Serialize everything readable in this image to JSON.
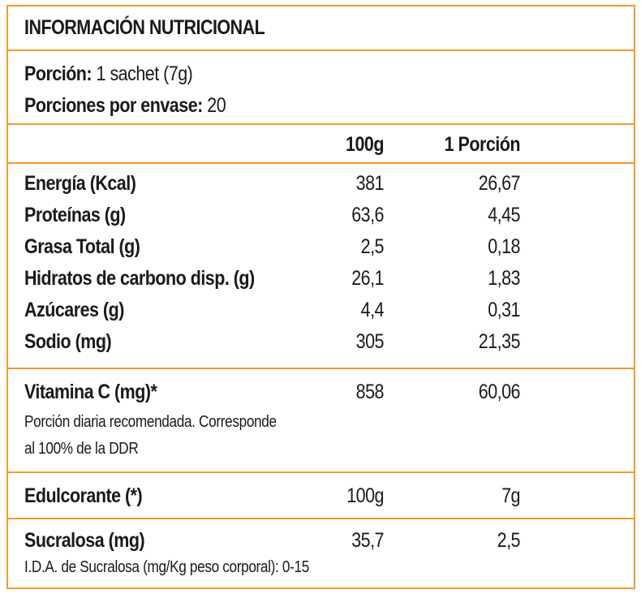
{
  "title": "INFORMACIÓN NUTRICIONAL",
  "serving": {
    "portion_label": "Porción:",
    "portion_value": "1 sachet (7g)",
    "count_label": "Porciones por envase:",
    "count_value": "20"
  },
  "columns": {
    "per100": "100g",
    "perServing": "1 Porción"
  },
  "nutrients": [
    {
      "name": "Energía (Kcal)",
      "per100": "381",
      "perServing": "26,67"
    },
    {
      "name": "Proteínas (g)",
      "per100": "63,6",
      "perServing": "4,45"
    },
    {
      "name": "Grasa Total (g)",
      "per100": "2,5",
      "perServing": "0,18"
    },
    {
      "name": "Hidratos de carbono disp. (g)",
      "per100": "26,1",
      "perServing": "1,83"
    },
    {
      "name": "Azúcares (g)",
      "per100": "4,4",
      "perServing": "0,31"
    },
    {
      "name": "Sodio (mg)",
      "per100": "305",
      "perServing": "21,35"
    }
  ],
  "vitamin": {
    "name": "Vitamina C (mg)*",
    "per100": "858",
    "perServing": "60,06",
    "note_line1": "Porción diaria recomendada. Corresponde",
    "note_line2": "al 100% de la DDR"
  },
  "sweetener": {
    "name": "Edulcorante (*)",
    "per100": "100g",
    "perServing": "7g"
  },
  "sucralose": {
    "name": "Sucralosa (mg)",
    "per100": "35,7",
    "perServing": "2,5",
    "note": "I.D.A. de Sucralosa (mg/Kg peso corporal): 0-15"
  }
}
